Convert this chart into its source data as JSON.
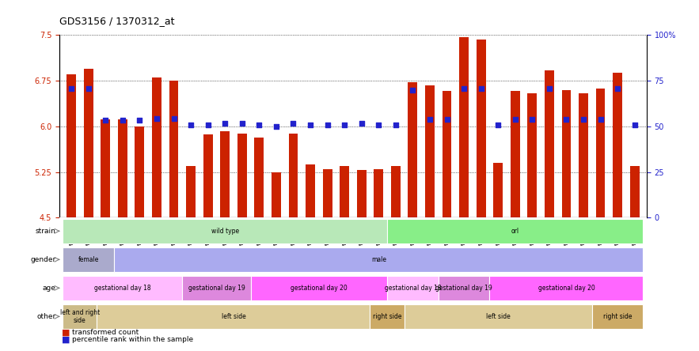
{
  "title": "GDS3156 / 1370312_at",
  "samples": [
    "GSM187635",
    "GSM187636",
    "GSM187637",
    "GSM187638",
    "GSM187639",
    "GSM187640",
    "GSM187641",
    "GSM187642",
    "GSM187643",
    "GSM187644",
    "GSM187645",
    "GSM187646",
    "GSM187647",
    "GSM187648",
    "GSM187649",
    "GSM187650",
    "GSM187651",
    "GSM187652",
    "GSM187653",
    "GSM187654",
    "GSM187655",
    "GSM187656",
    "GSM187657",
    "GSM187658",
    "GSM187659",
    "GSM187660",
    "GSM187661",
    "GSM187662",
    "GSM187663",
    "GSM187664",
    "GSM187665",
    "GSM187666",
    "GSM187667",
    "GSM187668"
  ],
  "transformed_count": [
    6.85,
    6.95,
    6.12,
    6.12,
    6.0,
    6.8,
    6.75,
    5.35,
    5.87,
    5.92,
    5.88,
    5.82,
    5.25,
    5.88,
    5.38,
    5.3,
    5.35,
    5.28,
    5.3,
    5.35,
    6.72,
    6.68,
    6.58,
    7.47,
    7.43,
    5.4,
    6.58,
    6.55,
    6.92,
    6.6,
    6.55,
    6.62,
    6.88,
    5.35
  ],
  "percentile_rank_left_scale": [
    6.62,
    6.62,
    6.1,
    6.1,
    6.1,
    6.13,
    6.13,
    6.02,
    6.02,
    6.05,
    6.05,
    6.02,
    6.0,
    6.05,
    6.02,
    6.02,
    6.02,
    6.05,
    6.02,
    6.02,
    6.6,
    6.12,
    6.12,
    6.62,
    6.62,
    6.02,
    6.12,
    6.12,
    6.62,
    6.12,
    6.12,
    6.12,
    6.62,
    6.02
  ],
  "ylim_left": [
    4.5,
    7.5
  ],
  "ylim_right": [
    0,
    100
  ],
  "yticks_left": [
    4.5,
    5.25,
    6.0,
    6.75,
    7.5
  ],
  "yticks_right": [
    0,
    25,
    50,
    75,
    100
  ],
  "bar_color": "#cc2200",
  "dot_color": "#2222cc",
  "strain_blocks": [
    {
      "label": "wild type",
      "start": 0,
      "end": 19,
      "color": "#b8e8b8"
    },
    {
      "label": "orl",
      "start": 19,
      "end": 34,
      "color": "#88ee88"
    }
  ],
  "gender_blocks": [
    {
      "label": "female",
      "start": 0,
      "end": 3,
      "color": "#aaaacc"
    },
    {
      "label": "male",
      "start": 3,
      "end": 34,
      "color": "#aaaaee"
    }
  ],
  "age_blocks": [
    {
      "label": "gestational day 18",
      "start": 0,
      "end": 7,
      "color": "#ffbbff"
    },
    {
      "label": "gestational day 19",
      "start": 7,
      "end": 11,
      "color": "#dd88dd"
    },
    {
      "label": "gestational day 20",
      "start": 11,
      "end": 19,
      "color": "#ff66ff"
    },
    {
      "label": "gestational day 18",
      "start": 19,
      "end": 22,
      "color": "#ffbbff"
    },
    {
      "label": "gestational day 19",
      "start": 22,
      "end": 25,
      "color": "#dd88dd"
    },
    {
      "label": "gestational day 20",
      "start": 25,
      "end": 34,
      "color": "#ff66ff"
    }
  ],
  "other_blocks": [
    {
      "label": "left and right\nside",
      "start": 0,
      "end": 2,
      "color": "#ccbb88"
    },
    {
      "label": "left side",
      "start": 2,
      "end": 18,
      "color": "#ddcc99"
    },
    {
      "label": "right side",
      "start": 18,
      "end": 20,
      "color": "#ccaa66"
    },
    {
      "label": "left side",
      "start": 20,
      "end": 31,
      "color": "#ddcc99"
    },
    {
      "label": "right side",
      "start": 31,
      "end": 34,
      "color": "#ccaa66"
    }
  ],
  "row_labels": [
    "strain",
    "gender",
    "age",
    "other"
  ],
  "legend_items": [
    {
      "label": "transformed count",
      "color": "#cc2200"
    },
    {
      "label": "percentile rank within the sample",
      "color": "#2222cc"
    }
  ]
}
